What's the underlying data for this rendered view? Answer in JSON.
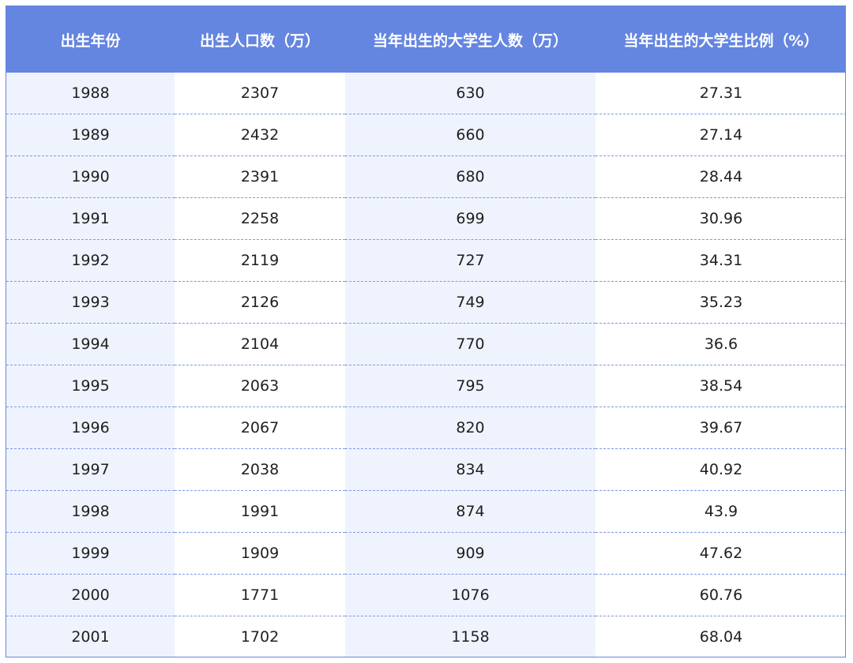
{
  "chart_data": {
    "type": "table",
    "columns": [
      "出生年份",
      "出生人口数（万）",
      "当年出生的大学生人数（万）",
      "当年出生的大学生比例（%）"
    ],
    "rows": [
      [
        "1988",
        "2307",
        "630",
        "27.31"
      ],
      [
        "1989",
        "2432",
        "660",
        "27.14"
      ],
      [
        "1990",
        "2391",
        "680",
        "28.44"
      ],
      [
        "1991",
        "2258",
        "699",
        "30.96"
      ],
      [
        "1992",
        "2119",
        "727",
        "34.31"
      ],
      [
        "1993",
        "2126",
        "749",
        "35.23"
      ],
      [
        "1994",
        "2104",
        "770",
        "36.6"
      ],
      [
        "1995",
        "2063",
        "795",
        "38.54"
      ],
      [
        "1996",
        "2067",
        "820",
        "39.67"
      ],
      [
        "1997",
        "2038",
        "834",
        "40.92"
      ],
      [
        "1998",
        "1991",
        "874",
        "43.9"
      ],
      [
        "1999",
        "1909",
        "909",
        "47.62"
      ],
      [
        "2000",
        "1771",
        "1076",
        "60.76"
      ],
      [
        "2001",
        "1702",
        "1158",
        "68.04"
      ]
    ],
    "colors": {
      "header_bg": "#6485e0",
      "header_text": "#ffffff",
      "stripe_bg": "#eff3fd",
      "row_divider": "#7f98e2"
    }
  }
}
